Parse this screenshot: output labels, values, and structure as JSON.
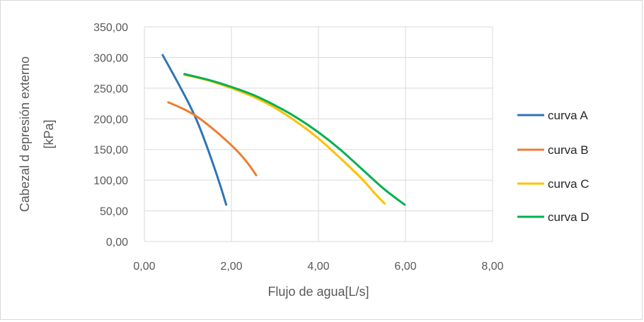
{
  "chart_data": {
    "type": "line",
    "title": "",
    "xlabel": "Flujo de agua[L/s]",
    "ylabel": "Cabezal d epresión externo\n[kPa]",
    "xlim": [
      0,
      8
    ],
    "ylim": [
      0,
      350
    ],
    "x_ticks": [
      "0,00",
      "2,00",
      "4,00",
      "6,00",
      "8,00"
    ],
    "y_ticks": [
      "0,00",
      "50,00",
      "100,00",
      "150,00",
      "200,00",
      "250,00",
      "300,00",
      "350,00"
    ],
    "grid": true,
    "legend_position": "right",
    "series": [
      {
        "name": "curva A",
        "color": "#2E75B6",
        "points": [
          [
            0.42,
            304
          ],
          [
            0.7,
            268
          ],
          [
            1.0,
            228
          ],
          [
            1.2,
            198
          ],
          [
            1.4,
            162
          ],
          [
            1.6,
            122
          ],
          [
            1.75,
            90
          ],
          [
            1.88,
            60
          ]
        ]
      },
      {
        "name": "curva B",
        "color": "#ED7D31",
        "points": [
          [
            0.55,
            227
          ],
          [
            0.9,
            216
          ],
          [
            1.2,
            204
          ],
          [
            1.5,
            188
          ],
          [
            1.8,
            170
          ],
          [
            2.1,
            150
          ],
          [
            2.35,
            130
          ],
          [
            2.57,
            108
          ]
        ]
      },
      {
        "name": "curva C",
        "color": "#FFC000",
        "points": [
          [
            0.92,
            272
          ],
          [
            1.5,
            262
          ],
          [
            2.0,
            250
          ],
          [
            2.5,
            236
          ],
          [
            3.0,
            218
          ],
          [
            3.5,
            195
          ],
          [
            4.0,
            168
          ],
          [
            4.5,
            136
          ],
          [
            5.0,
            102
          ],
          [
            5.3,
            78
          ],
          [
            5.52,
            62
          ]
        ]
      },
      {
        "name": "curva D",
        "color": "#00B050",
        "points": [
          [
            0.92,
            273
          ],
          [
            1.5,
            263
          ],
          [
            2.0,
            252
          ],
          [
            2.5,
            239
          ],
          [
            3.0,
            222
          ],
          [
            3.5,
            202
          ],
          [
            4.0,
            178
          ],
          [
            4.5,
            150
          ],
          [
            5.0,
            118
          ],
          [
            5.5,
            86
          ],
          [
            5.98,
            60
          ]
        ]
      }
    ]
  }
}
